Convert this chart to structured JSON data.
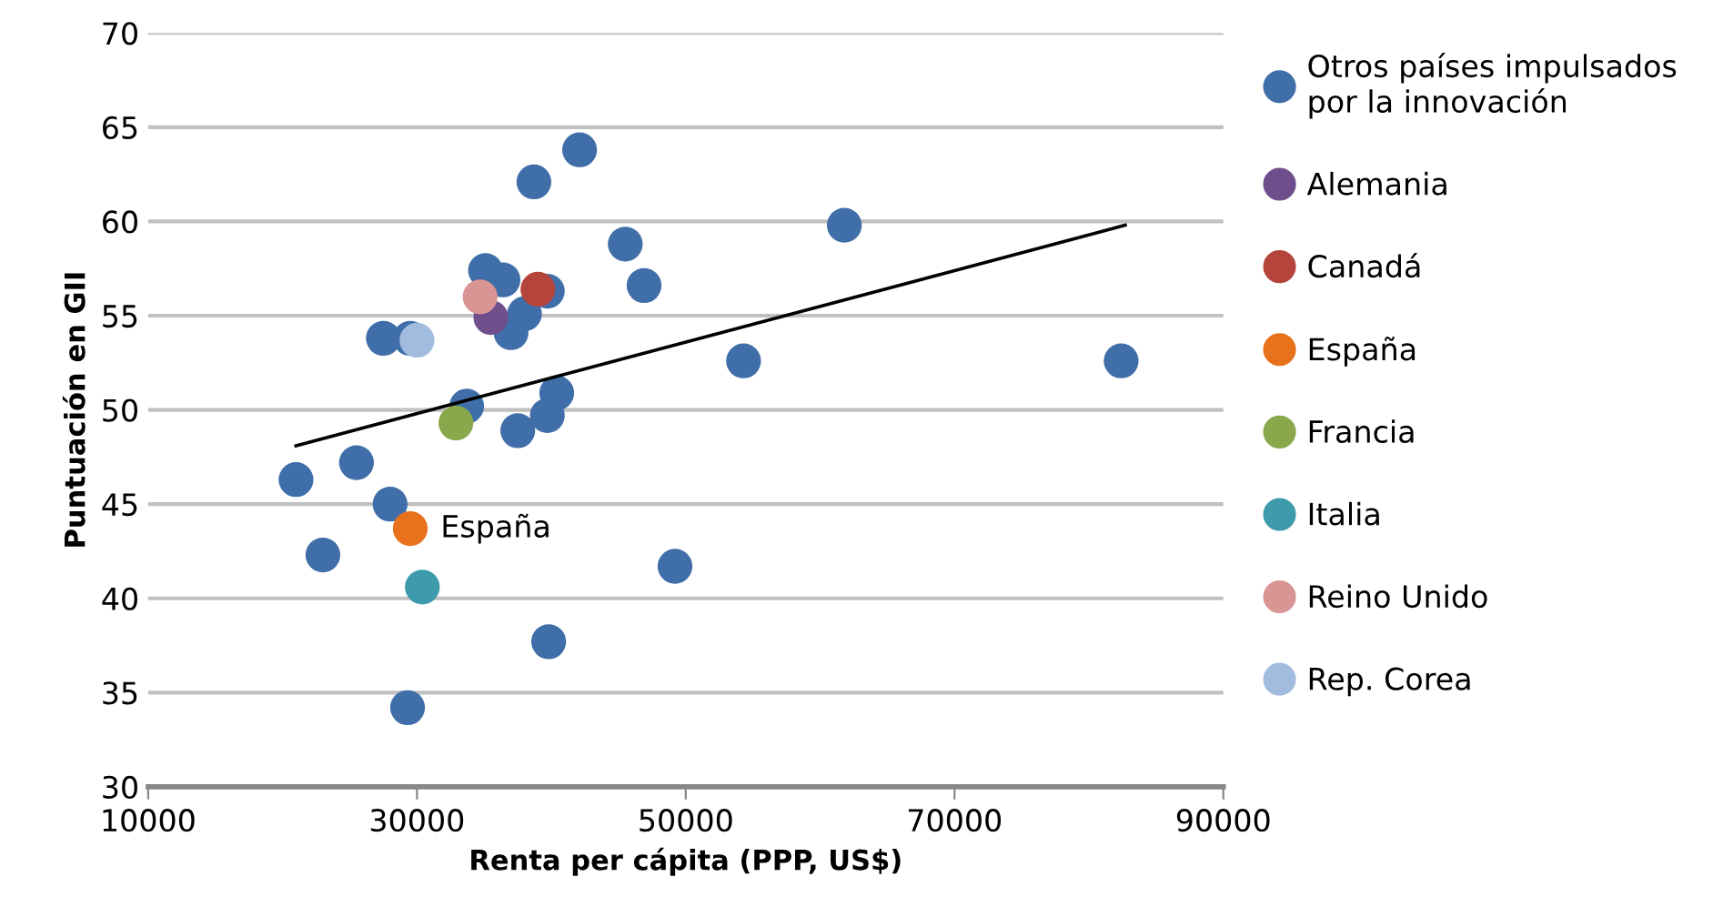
{
  "chart_data": {
    "type": "scatter",
    "xlabel": "Renta per cápita (PPP, US$)",
    "ylabel": "Puntuación en GII",
    "xlim": [
      10000,
      90000
    ],
    "xticks": [
      10000,
      30000,
      50000,
      70000,
      90000
    ],
    "ylim": [
      30,
      70
    ],
    "yticks": [
      30,
      35,
      40,
      45,
      50,
      55,
      60,
      65,
      70
    ],
    "grid": "y",
    "legend": "right",
    "marker": "circle",
    "series": [
      {
        "name": "Otros países impulsados por la innovación",
        "color": "#3f6ea8",
        "x": [
          21000,
          23000,
          25500,
          27500,
          28000,
          29300,
          29500,
          33700,
          35100,
          36400,
          37000,
          38000,
          37500,
          38700,
          39700,
          39700,
          40400,
          39800,
          42100,
          45500,
          46900,
          49200,
          54300,
          61800,
          82400
        ],
        "values": [
          46.3,
          42.3,
          47.2,
          53.8,
          45.0,
          34.2,
          53.8,
          50.2,
          57.4,
          56.9,
          54.1,
          55.1,
          48.9,
          62.1,
          56.3,
          49.7,
          50.9,
          37.7,
          63.8,
          58.8,
          56.6,
          41.7,
          52.6,
          59.8,
          52.6
        ]
      },
      {
        "name": "Alemania",
        "color": "#6e4f8c",
        "x": [
          35500
        ],
        "values": [
          54.9
        ]
      },
      {
        "name": "Canadá",
        "color": "#b5443d",
        "x": [
          39000
        ],
        "values": [
          56.4
        ]
      },
      {
        "name": "España",
        "color": "#e8711c",
        "x": [
          29500
        ],
        "values": [
          43.7
        ]
      },
      {
        "name": "Francia",
        "color": "#8aa84b",
        "x": [
          32900
        ],
        "values": [
          49.3
        ]
      },
      {
        "name": "Italia",
        "color": "#3e9bab",
        "x": [
          30400
        ],
        "values": [
          40.6
        ]
      },
      {
        "name": "Reino Unido",
        "color": "#d99594",
        "x": [
          34700
        ],
        "values": [
          56.0
        ]
      },
      {
        "name": "Rep. Corea",
        "color": "#a2bce0",
        "x": [
          30000
        ],
        "values": [
          53.7
        ]
      },
      {
        "type": "line",
        "marker": "none",
        "color": "#000000",
        "x": [
          21000,
          82700
        ],
        "values": [
          48.1,
          59.8
        ]
      }
    ],
    "annotations": [
      {
        "text": "España",
        "x": 29500,
        "y": 43.7
      }
    ]
  }
}
